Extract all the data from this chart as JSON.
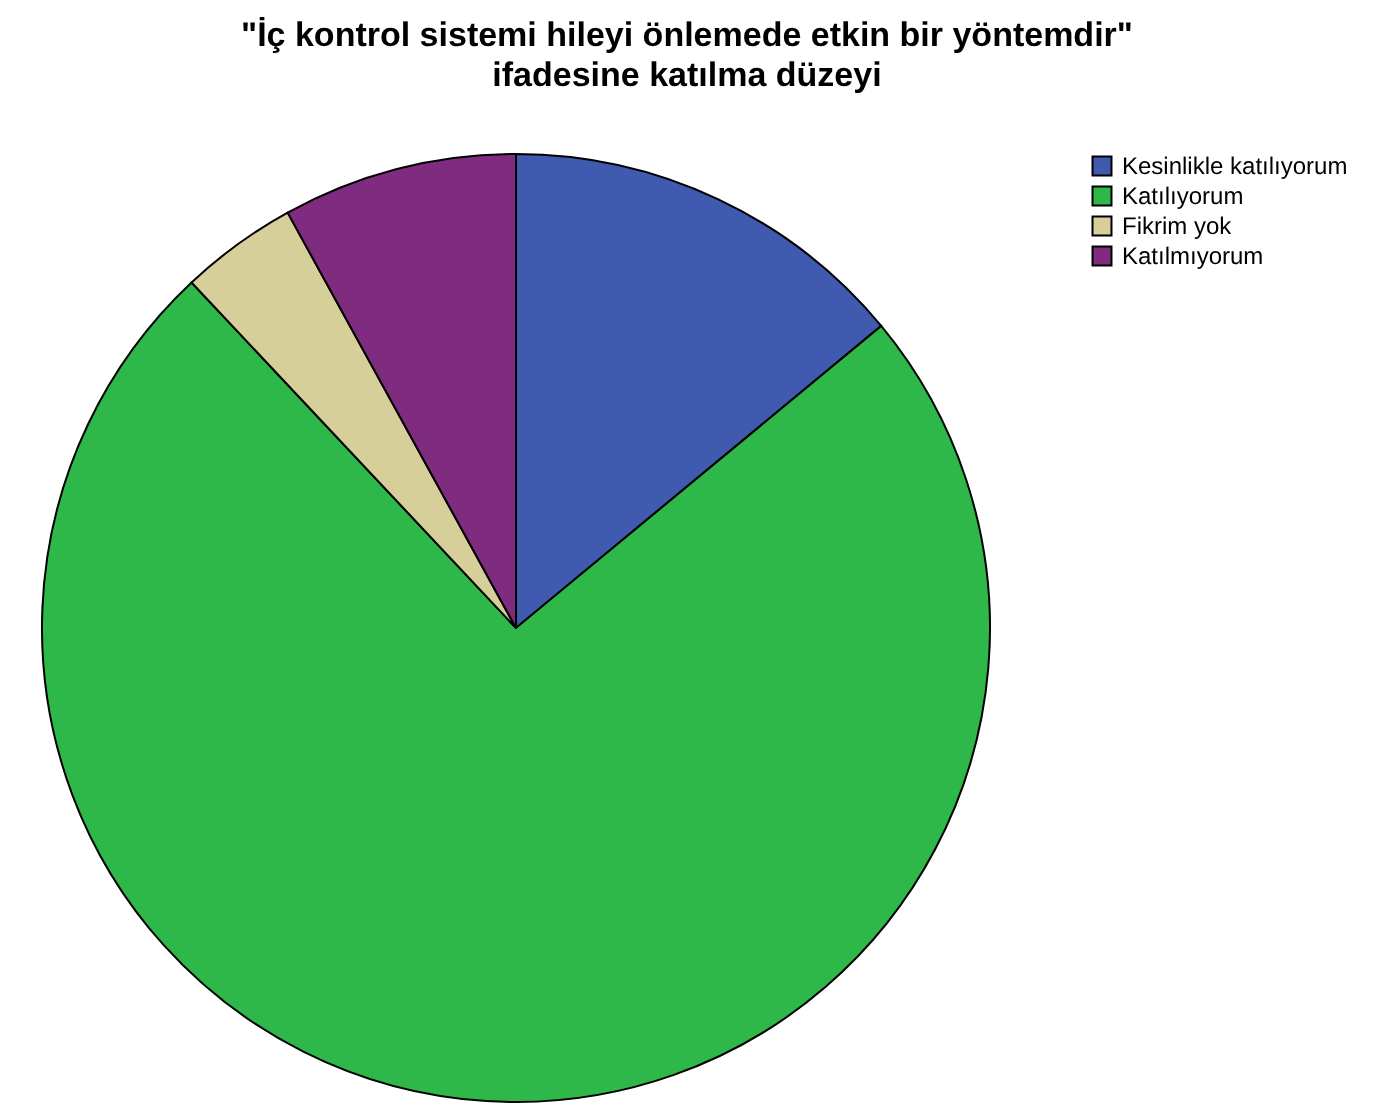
{
  "chart_data": {
    "type": "pie",
    "title": "\"İç kontrol sistemi hileyi önlemede etkin bir yöntemdir\" ifadesine katılma düzeyi",
    "categories": [
      "Kesinlikle katılıyorum",
      "Katılıyorum",
      "Fikrim yok",
      "Katılmıyorum"
    ],
    "values": [
      14,
      74,
      4,
      8
    ],
    "colors": [
      "#3f5aae",
      "#2eb84a",
      "#d6cf9a",
      "#7f2b80"
    ],
    "legend": "top right"
  }
}
